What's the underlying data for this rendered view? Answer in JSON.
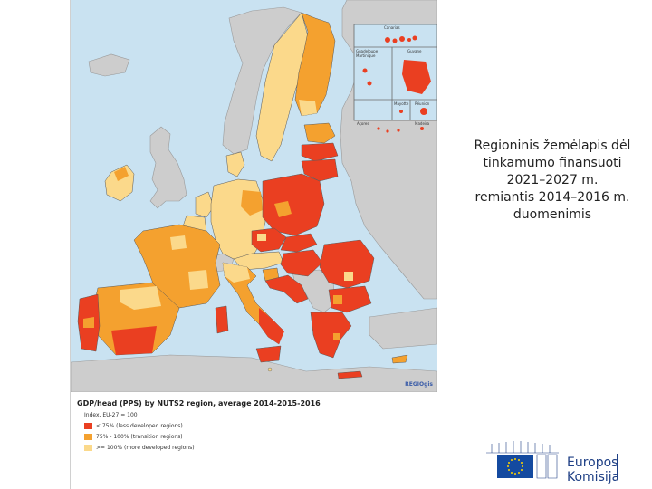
{
  "colors": {
    "sea": "#c9e2f1",
    "non_eu": "#cdcdcd",
    "less_developed": "#ea3f21",
    "transition": "#f4a12f",
    "more_developed": "#fbd98b",
    "border": "#5a5a5a",
    "ec_blue": "#1e3f85",
    "flag_blue": "#144aa0",
    "flag_star": "#ffd200"
  },
  "map": {
    "inset_labels": [
      "Canarias",
      "Guadeloupe Martinique",
      "Guyane",
      "Mayotte",
      "Réunion",
      "Açores",
      "Madeira"
    ],
    "credit": "REGIOgis"
  },
  "legend": {
    "title": "GDP/head (PPS) by NUTS2 region, average 2014-2015-2016",
    "index_label": "Index, EU-27 = 100",
    "items": [
      {
        "label": "< 75% (less developed regions)",
        "color": "#ea3f21"
      },
      {
        "label": "75% - 100% (transition regions)",
        "color": "#f4a12f"
      },
      {
        "label": ">= 100% (more developed regions)",
        "color": "#fbd98b"
      }
    ]
  },
  "caption": {
    "lines": [
      "Regioninis žemėlapis dėl",
      "tinkamumo finansuoti",
      "2021–2027 m.",
      "remiantis 2014–2016 m.",
      "duomenimis"
    ]
  },
  "logo": {
    "line1": "Europos",
    "line2": "Komisija"
  }
}
